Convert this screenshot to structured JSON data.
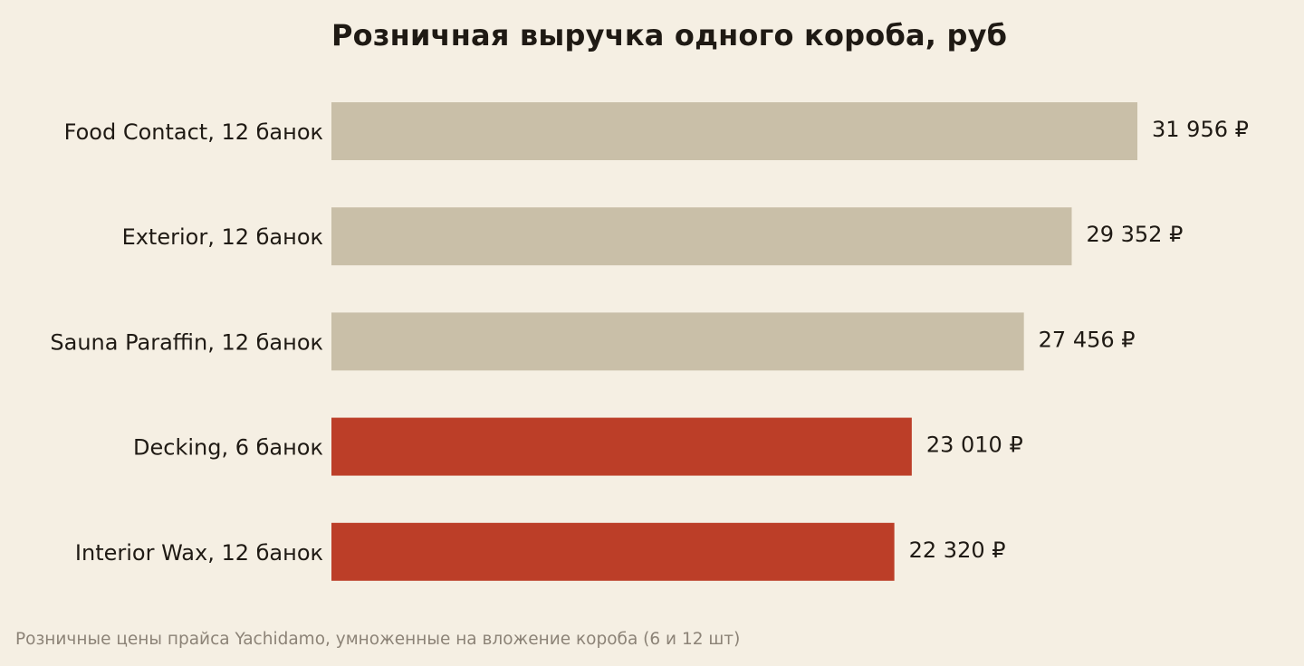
{
  "colors": {
    "background": "#f5efe3",
    "bar_neutral": "#c9bfa8",
    "bar_highlight": "#bc3e28",
    "text": "#1f1a14",
    "note_text": "#8c8377"
  },
  "chart_data": {
    "type": "bar",
    "orientation": "horizontal",
    "title": "Розничная выручка одного короба, руб",
    "note": "Розничные цены прайса Yachidamo, умноженные на вложение короба (6 и 12 шт)",
    "categories": [
      "Food Contact, 12 банок",
      "Exterior, 12 банок",
      "Sauna Paraffin, 12 банок",
      "Decking, 6 банок",
      "Interior Wax, 12 банок"
    ],
    "values": [
      31956,
      29352,
      27456,
      23010,
      22320
    ],
    "value_labels": [
      "31 956 ₽",
      "29 352 ₽",
      "27 456 ₽",
      "23 010 ₽",
      "22 320 ₽"
    ],
    "highlighted": [
      false,
      false,
      false,
      true,
      true
    ],
    "xlim": [
      0,
      31956
    ],
    "grid": false,
    "legend": "none"
  }
}
